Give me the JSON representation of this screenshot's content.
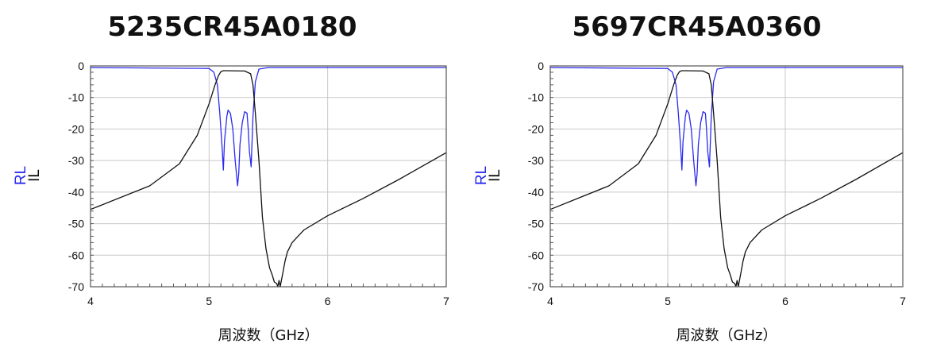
{
  "colors": {
    "rl": "#2a2af0",
    "il": "#111111",
    "grid": "#c8c8c8",
    "frame": "#555555",
    "background": "#ffffff"
  },
  "chart_data": [
    {
      "type": "line",
      "title": "5235CR45A0180",
      "xlabel": "周波数（GHz）",
      "ylabel_parts": [
        "RL",
        "IL"
      ],
      "xlim": [
        4,
        7
      ],
      "ylim": [
        -70,
        0
      ],
      "x_ticks": [
        "4",
        "5",
        "6",
        "7"
      ],
      "y_ticks": [
        "0",
        "-10",
        "-20",
        "-30",
        "-40",
        "-50",
        "-60",
        "-70"
      ],
      "grid": true,
      "series": [
        {
          "name": "RL",
          "x": [
            4.0,
            5.0,
            5.04,
            5.07,
            5.09,
            5.11,
            5.12,
            5.13,
            5.15,
            5.16,
            5.18,
            5.2,
            5.22,
            5.24,
            5.25,
            5.26,
            5.28,
            5.3,
            5.32,
            5.33,
            5.34,
            5.355,
            5.37,
            5.39,
            5.42,
            5.5,
            6.0,
            7.0
          ],
          "y": [
            -0.5,
            -0.8,
            -2,
            -6,
            -15,
            -26,
            -33,
            -24,
            -16,
            -14,
            -15,
            -20,
            -30,
            -38,
            -34,
            -25,
            -18,
            -14.5,
            -15,
            -20,
            -27,
            -32,
            -16,
            -5,
            -1,
            -0.5,
            -0.5,
            -0.5
          ]
        },
        {
          "name": "IL",
          "x": [
            4.0,
            4.5,
            4.75,
            4.9,
            5.0,
            5.05,
            5.08,
            5.1,
            5.12,
            5.15,
            5.3,
            5.35,
            5.37,
            5.39,
            5.42,
            5.45,
            5.48,
            5.51,
            5.53,
            5.55,
            5.57,
            5.58,
            5.59,
            5.6,
            5.62,
            5.64,
            5.66,
            5.7,
            5.8,
            6.0,
            6.3,
            6.6,
            7.0
          ],
          "y": [
            -45.5,
            -38,
            -31,
            -22,
            -12,
            -6,
            -3,
            -1.8,
            -1.5,
            -1.5,
            -1.6,
            -2.5,
            -6,
            -15,
            -30,
            -48,
            -58,
            -64,
            -66,
            -68.5,
            -69,
            -70,
            -68,
            -70,
            -66,
            -62,
            -59,
            -56,
            -52,
            -47.5,
            -42,
            -36,
            -27.5
          ]
        }
      ]
    },
    {
      "type": "line",
      "title": "5697CR45A0360",
      "xlabel": "周波数（GHz）",
      "ylabel_parts": [
        "RL",
        "IL"
      ],
      "xlim": [
        4,
        7
      ],
      "ylim": [
        -70,
        0
      ],
      "x_ticks": [
        "4",
        "5",
        "6",
        "7"
      ],
      "y_ticks": [
        "0",
        "-10",
        "-20",
        "-30",
        "-40",
        "-50",
        "-60",
        "-70"
      ],
      "grid": true,
      "series": [
        {
          "name": "RL",
          "x": [
            4.0,
            5.0,
            5.04,
            5.07,
            5.09,
            5.11,
            5.12,
            5.13,
            5.15,
            5.16,
            5.18,
            5.2,
            5.22,
            5.24,
            5.25,
            5.26,
            5.28,
            5.3,
            5.32,
            5.33,
            5.34,
            5.355,
            5.37,
            5.39,
            5.42,
            5.5,
            6.0,
            7.0
          ],
          "y": [
            -0.5,
            -0.8,
            -2,
            -6,
            -15,
            -26,
            -33,
            -24,
            -16,
            -14,
            -15,
            -20,
            -30,
            -38,
            -34,
            -25,
            -18,
            -14.5,
            -15,
            -20,
            -27,
            -32,
            -16,
            -5,
            -1,
            -0.5,
            -0.5,
            -0.5
          ]
        },
        {
          "name": "IL",
          "x": [
            4.0,
            4.5,
            4.75,
            4.9,
            5.0,
            5.05,
            5.08,
            5.1,
            5.12,
            5.15,
            5.3,
            5.35,
            5.37,
            5.39,
            5.42,
            5.45,
            5.48,
            5.51,
            5.53,
            5.55,
            5.57,
            5.58,
            5.59,
            5.6,
            5.62,
            5.64,
            5.66,
            5.7,
            5.8,
            6.0,
            6.3,
            6.6,
            7.0
          ],
          "y": [
            -45.5,
            -38,
            -31,
            -22,
            -12,
            -6,
            -3,
            -1.8,
            -1.5,
            -1.5,
            -1.6,
            -2.5,
            -6,
            -15,
            -30,
            -48,
            -58,
            -64,
            -66,
            -68.5,
            -69,
            -70,
            -68,
            -70,
            -66,
            -62,
            -59,
            -56,
            -52,
            -47.5,
            -42,
            -36,
            -27.5
          ]
        }
      ]
    }
  ]
}
